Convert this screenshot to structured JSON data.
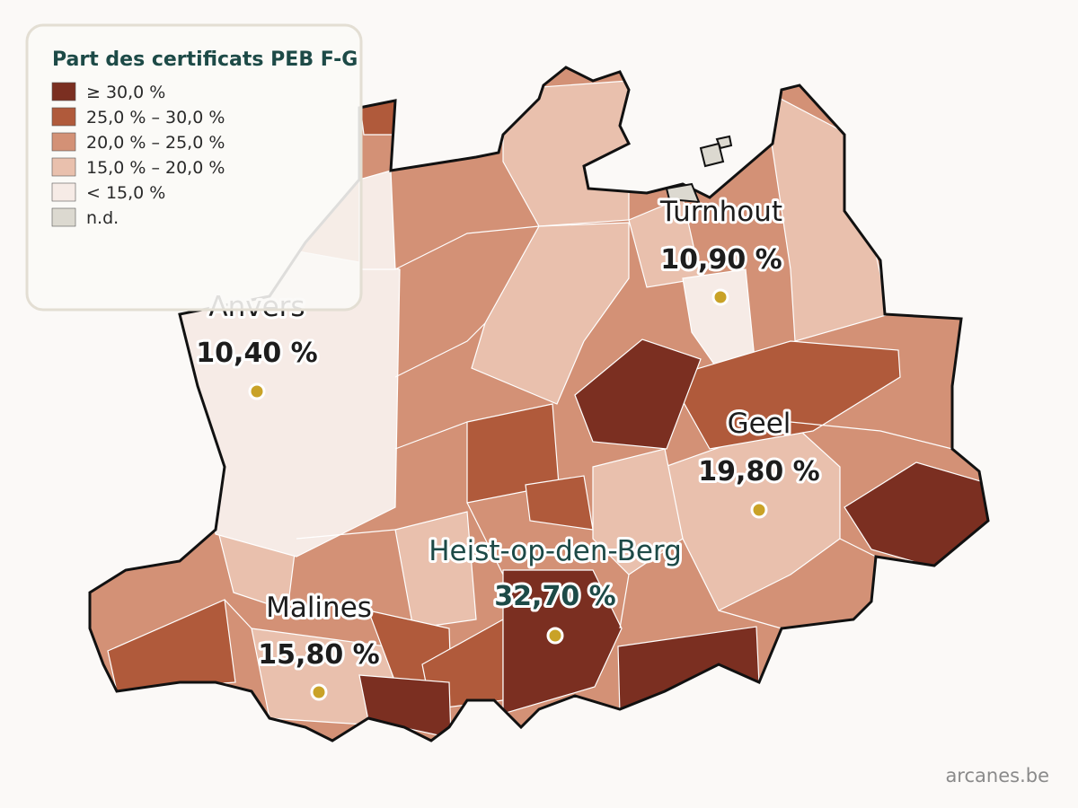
{
  "legend": {
    "title": "Part des certificats PEB F-G",
    "items": [
      {
        "label": "≥ 30,0 %",
        "color": "#7b2f21"
      },
      {
        "label": "25,0 % – 30,0 %",
        "color": "#b05a3b"
      },
      {
        "label": "20,0 % – 25,0 %",
        "color": "#d39176"
      },
      {
        "label": "15,0 % – 20,0 %",
        "color": "#e9c0ad"
      },
      {
        "label": "< 15,0 %",
        "color": "#f6ebe6"
      },
      {
        "label": "n.d.",
        "color": "#dcd9d0"
      }
    ]
  },
  "cities": [
    {
      "name": "Anvers",
      "value": "10,40 %"
    },
    {
      "name": "Turnhout",
      "value": "10,90 %"
    },
    {
      "name": "Geel",
      "value": "19,80 %"
    },
    {
      "name": "Heist-op-den-Berg",
      "value": "32,70 %"
    },
    {
      "name": "Malines",
      "value": "15,80 %"
    }
  ],
  "credit": "arcanes.be"
}
